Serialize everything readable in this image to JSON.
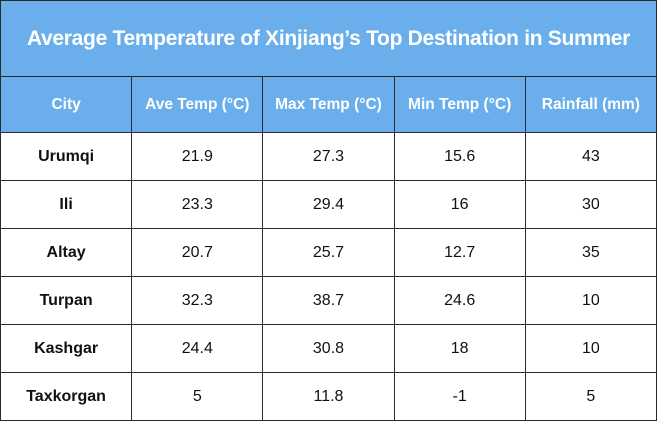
{
  "chart_data": {
    "type": "table",
    "title": "Average Temperature of Xinjiang’s Top Destination in Summer",
    "columns": [
      "City",
      "Ave Temp (°C)",
      "Max Temp (°C)",
      "Min Temp (°C)",
      "Rainfall (mm)"
    ],
    "rows": [
      [
        "Urumqi",
        "21.9",
        "27.3",
        "15.6",
        "43"
      ],
      [
        "Ili",
        "23.3",
        "29.4",
        "16",
        "30"
      ],
      [
        "Altay",
        "20.7",
        "25.7",
        "12.7",
        "35"
      ],
      [
        "Turpan",
        "32.3",
        "38.7",
        "24.6",
        "10"
      ],
      [
        "Kashgar",
        "24.4",
        "30.8",
        "18",
        "10"
      ],
      [
        "Taxkorgan",
        "5",
        "11.8",
        "-1",
        "5"
      ]
    ],
    "colors": {
      "header_bg": "#6aafeb",
      "header_text": "#ffffff",
      "border": "#2b2b2b"
    }
  }
}
